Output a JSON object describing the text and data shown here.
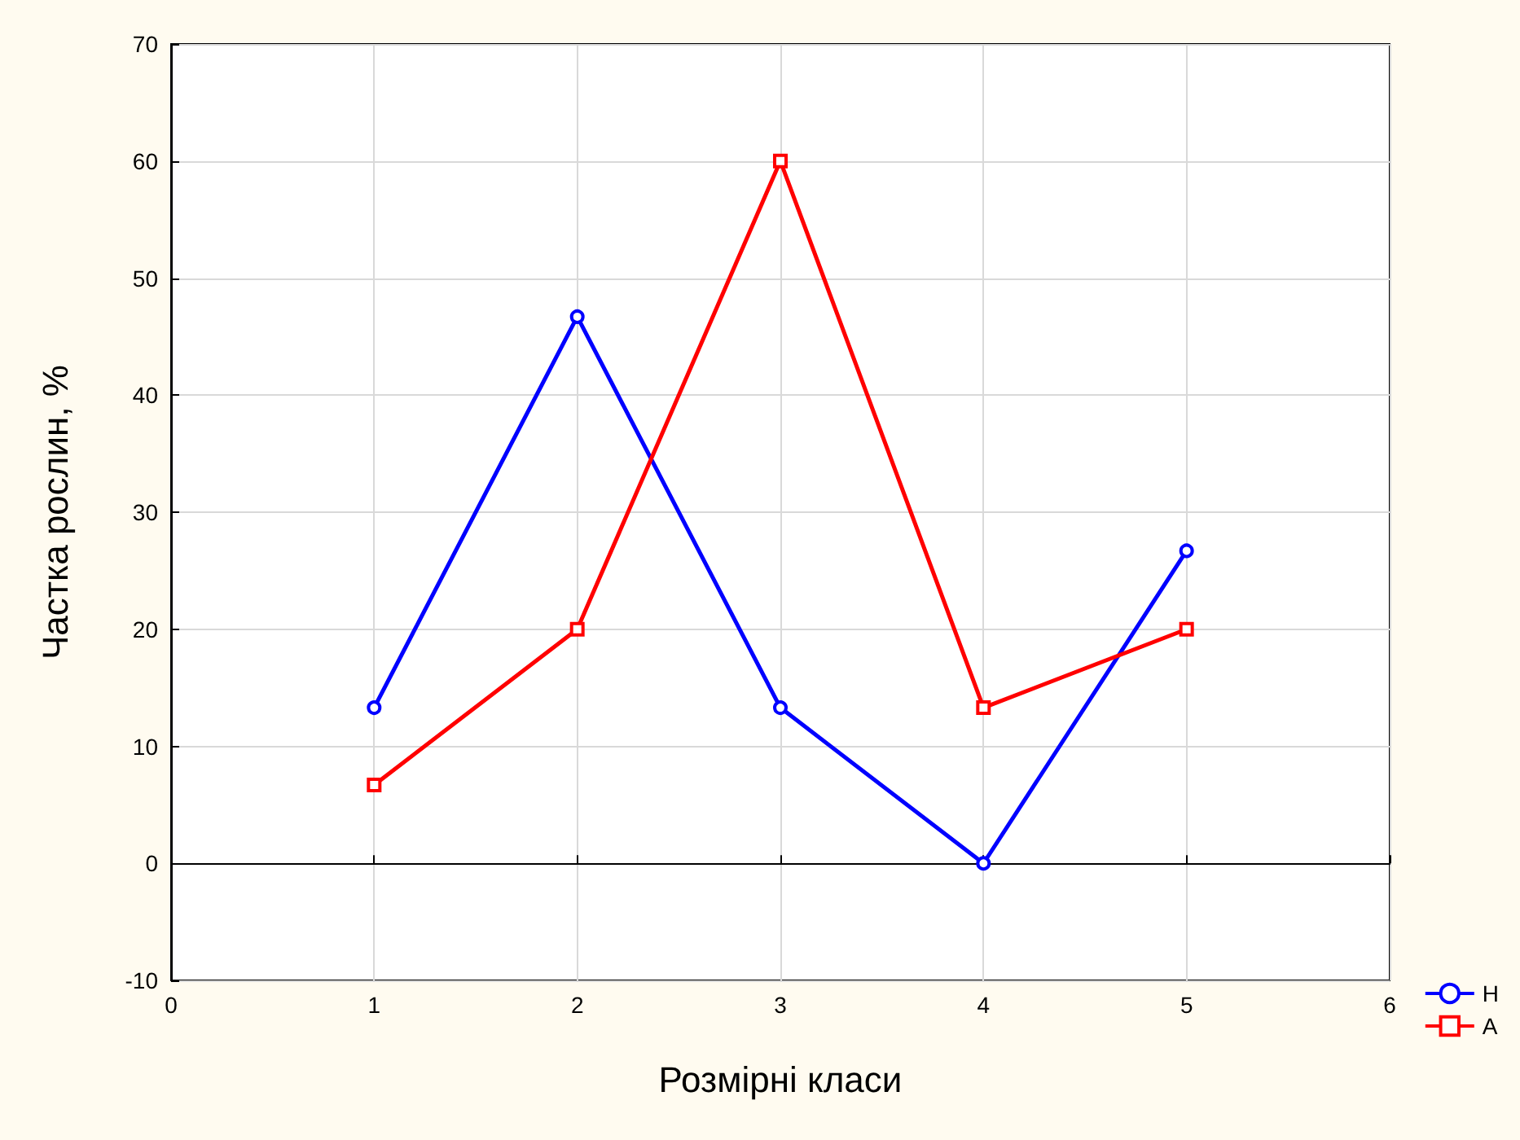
{
  "chart_data": {
    "type": "line",
    "xlabel": "Розмірні класи",
    "ylabel": "Частка рослин, %",
    "x": [
      1,
      2,
      3,
      4,
      5
    ],
    "series": [
      {
        "name": "Н",
        "color": "#0000ff",
        "marker": "circle",
        "values": [
          13.3,
          46.7,
          13.3,
          0,
          26.7
        ]
      },
      {
        "name": "А",
        "color": "#ff0000",
        "marker": "square",
        "values": [
          6.7,
          20,
          60,
          13.3,
          20
        ]
      }
    ],
    "xlim": [
      0,
      6
    ],
    "xticks": [
      0,
      1,
      2,
      3,
      4,
      5,
      6
    ],
    "ylim": [
      -10,
      70
    ],
    "yticks": [
      -10,
      0,
      10,
      20,
      30,
      40,
      50,
      60,
      70
    ],
    "grid": true,
    "legend": "bottom right",
    "line_style": "solid"
  }
}
